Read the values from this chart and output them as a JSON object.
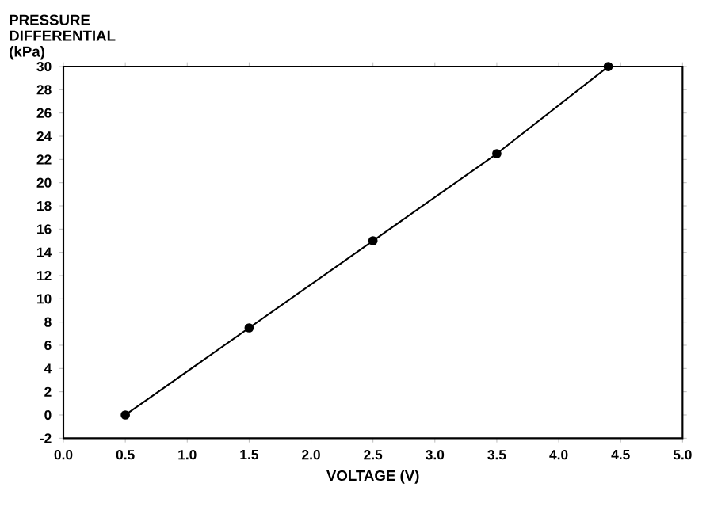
{
  "chart_data": {
    "type": "line",
    "xlabel": "VOLTAGE (V)",
    "ylabel": "PRESSURE DIFFERENTIAL (kPa)",
    "x": [
      0.5,
      1.5,
      2.5,
      3.5,
      4.4
    ],
    "series": [
      {
        "color": "#000000",
        "values": [
          0,
          7.5,
          15,
          22.5,
          30
        ]
      }
    ],
    "xlim": [
      0,
      5
    ],
    "ylim": [
      -2,
      30
    ],
    "xticks": [
      {
        "value": 0,
        "label": "0.0"
      },
      0.5,
      {
        "value": 1,
        "label": "1.0"
      },
      1.5,
      {
        "value": 2,
        "label": "2.0"
      },
      2.5,
      {
        "value": 3,
        "label": "3.0"
      },
      3.5,
      {
        "value": 4,
        "label": "4.0"
      },
      4.5,
      {
        "value": 5,
        "label": "5.0"
      }
    ],
    "yticks": [
      -2,
      0,
      2,
      4,
      6,
      8,
      10,
      12,
      14,
      16,
      18,
      20,
      22,
      24,
      26,
      28,
      30
    ],
    "grid": false,
    "marker": "circle",
    "line_style": "solid"
  }
}
